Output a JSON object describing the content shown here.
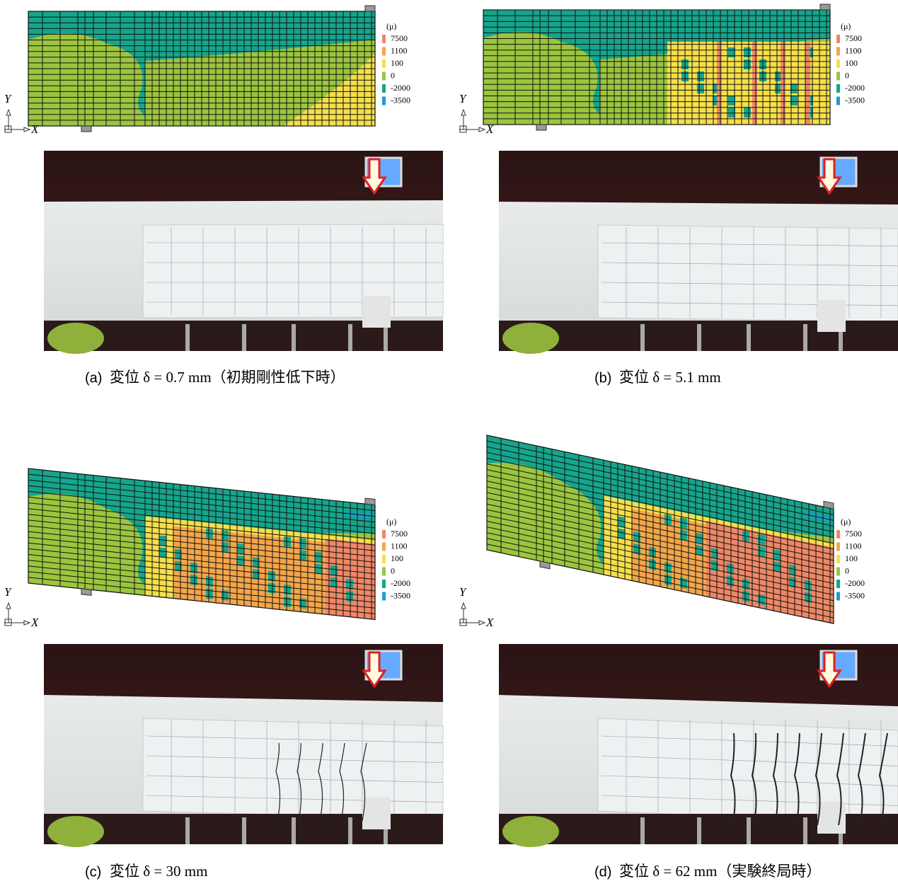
{
  "legend": {
    "unit": "(μ)",
    "items": [
      {
        "label": "7500",
        "color": "#ee8866"
      },
      {
        "label": "1100",
        "color": "#f3a64a"
      },
      {
        "label": "100",
        "color": "#f5df4a"
      },
      {
        "label": "0",
        "color": "#9cc53f"
      },
      {
        "label": "-2000",
        "color": "#15a58c"
      },
      {
        "label": "-3500",
        "color": "#1a9ed9"
      }
    ]
  },
  "axes": {
    "y": "Y",
    "x": "X"
  },
  "panels": [
    {
      "label": "(a)",
      "caption": "変位 δ = 0.7 mm（初期剛性低下時）"
    },
    {
      "label": "(b)",
      "caption": "変位 δ = 5.1 mm"
    },
    {
      "label": "(c)",
      "caption": "変位 δ = 30 mm"
    },
    {
      "label": "(d)",
      "caption": "変位 δ = 62 mm（実験終局時）"
    }
  ]
}
